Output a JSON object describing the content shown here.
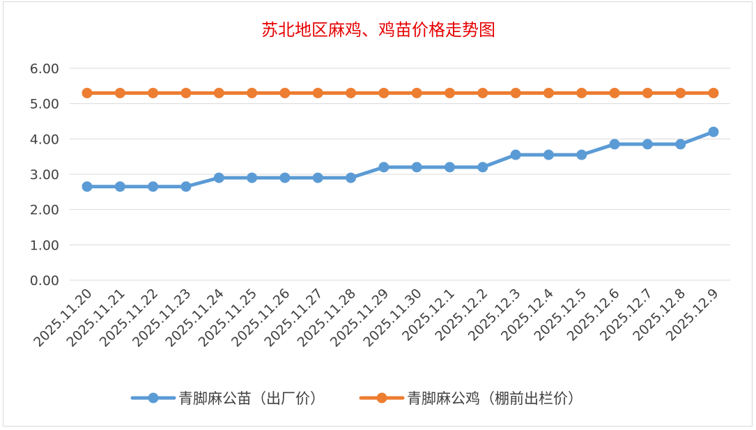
{
  "chart_data": {
    "type": "line",
    "title": "苏北地区麻鸡、鸡苗价格走势图",
    "categories": [
      "2025.11.20",
      "2025.11.21",
      "2025.11.22",
      "2025.11.23",
      "2025.11.24",
      "2025.11.25",
      "2025.11.26",
      "2025.11.27",
      "2025.11.28",
      "2025.11.29",
      "2025.11.30",
      "2025.12.1",
      "2025.12.2",
      "2025.12.3",
      "2025.12.4",
      "2025.12.5",
      "2025.12.6",
      "2025.12.7",
      "2025.12.8",
      "2025.12.9"
    ],
    "series": [
      {
        "name": "青脚麻公苗（出厂价）",
        "color": "#5b9bd5",
        "values": [
          2.65,
          2.65,
          2.65,
          2.65,
          2.9,
          2.9,
          2.9,
          2.9,
          2.9,
          3.2,
          3.2,
          3.2,
          3.2,
          3.55,
          3.55,
          3.55,
          3.85,
          3.85,
          3.85,
          4.2
        ]
      },
      {
        "name": "青脚麻公鸡（棚前出栏价）",
        "color": "#ed7d31",
        "values": [
          5.3,
          5.3,
          5.3,
          5.3,
          5.3,
          5.3,
          5.3,
          5.3,
          5.3,
          5.3,
          5.3,
          5.3,
          5.3,
          5.3,
          5.3,
          5.3,
          5.3,
          5.3,
          5.3,
          5.3
        ]
      }
    ],
    "yticks": [
      "0.00",
      "1.00",
      "2.00",
      "3.00",
      "4.00",
      "5.00",
      "6.00"
    ],
    "ylim": [
      0,
      6
    ],
    "xlabel": "",
    "ylabel": "",
    "grid": true,
    "legend": "bottom"
  }
}
